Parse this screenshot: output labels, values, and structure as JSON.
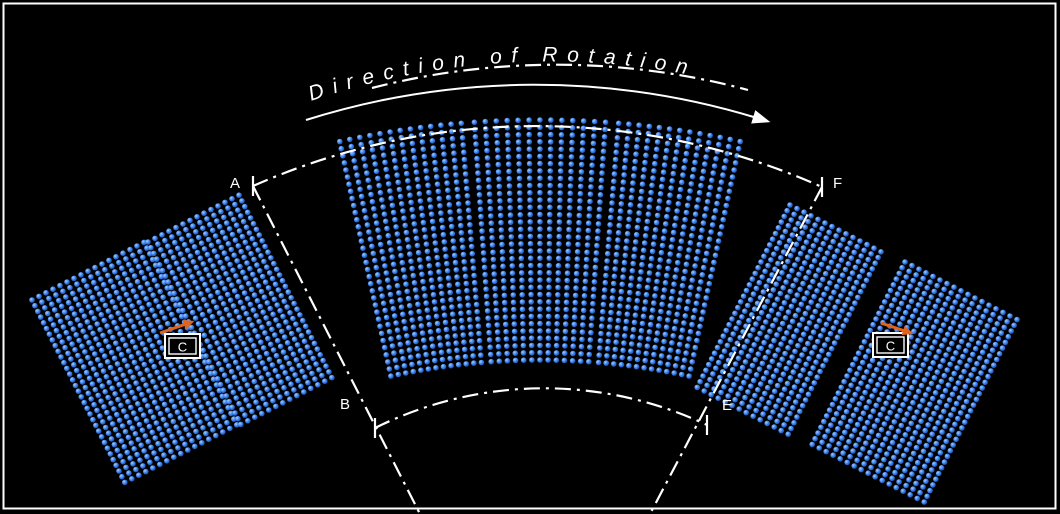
{
  "diagram": {
    "arc_label": "Direction of Rotation",
    "boundary_points": [
      "A",
      "B",
      "E",
      "F"
    ],
    "center_marker_label": "C",
    "center_marker_count": 2,
    "colors": {
      "background": "#000000",
      "border": "#ffffff",
      "particle": "#3a82ec",
      "particle_highlight": "#a9cbff",
      "boundary_line": "#ffffff",
      "rotation_arrow": "#ffffff",
      "marker_arrow": "#e0641e"
    }
  }
}
